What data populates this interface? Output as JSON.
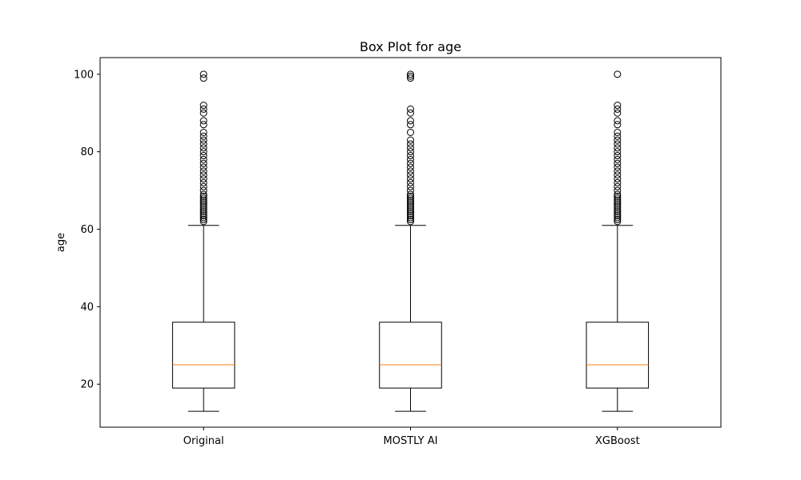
{
  "chart_data": {
    "type": "box",
    "title": "Box Plot for age",
    "xlabel": "",
    "ylabel": "age",
    "categories": [
      "Original",
      "MOSTLY AI",
      "XGBoost"
    ],
    "ylim": [
      8.9,
      104.3
    ],
    "yticks": [
      20,
      40,
      60,
      80,
      100
    ],
    "grid": false,
    "colors": {
      "box": "#000000",
      "median": "#ff7f0e",
      "flier": "#000000"
    },
    "series": [
      {
        "whisker_low": 13,
        "q1": 19,
        "median": 25,
        "q3": 36,
        "whisker_high": 61,
        "outliers": [
          62,
          62.5,
          63,
          63.5,
          64,
          64.5,
          65,
          65.5,
          66,
          66.5,
          67,
          67.5,
          68,
          68.5,
          69,
          70,
          71,
          72,
          73,
          74,
          75,
          76,
          77,
          78,
          79,
          80,
          81,
          82,
          83,
          84,
          85,
          87,
          88,
          90,
          91,
          92,
          99,
          100
        ]
      },
      {
        "whisker_low": 13,
        "q1": 19,
        "median": 25,
        "q3": 36,
        "whisker_high": 61,
        "outliers": [
          62,
          62.5,
          63,
          63.5,
          64,
          64.5,
          65,
          65.5,
          66,
          66.5,
          67,
          67.5,
          68,
          68.5,
          69,
          70,
          71,
          72,
          73,
          74,
          75,
          76,
          77,
          78,
          79,
          80,
          81,
          82,
          83,
          85,
          87,
          88,
          90,
          91,
          99,
          99.5,
          100
        ]
      },
      {
        "whisker_low": 13,
        "q1": 19,
        "median": 25,
        "q3": 36,
        "whisker_high": 61,
        "outliers": [
          62,
          62.5,
          63,
          63.5,
          64,
          64.5,
          65,
          65.5,
          66,
          66.5,
          67,
          67.5,
          68,
          68.5,
          69,
          70,
          71,
          72,
          73,
          74,
          75,
          76,
          77,
          78,
          79,
          80,
          81,
          82,
          83,
          84,
          85,
          87,
          88,
          90,
          91,
          92,
          100
        ]
      }
    ]
  }
}
